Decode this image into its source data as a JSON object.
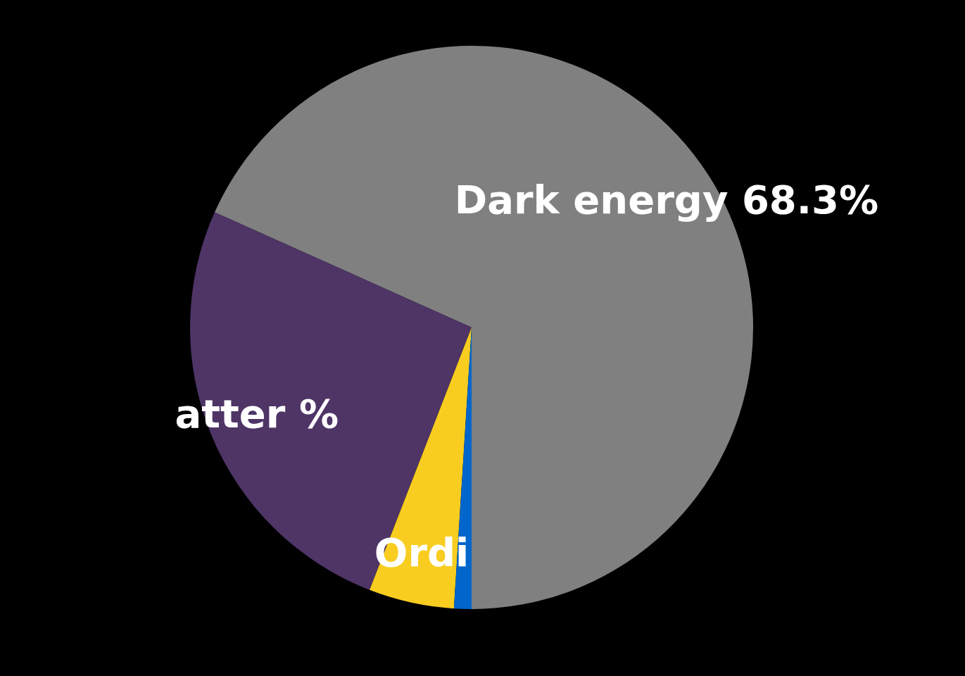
{
  "chart_data": {
    "type": "pie",
    "categories": [
      "Dark energy 68.3%",
      "atter %",
      "Ordi",
      null
    ],
    "values": [
      68.3,
      25.8,
      4.9,
      1.0
    ],
    "colors": [
      "#808080",
      "#4e3566",
      "#f8cd20",
      "#0066cc"
    ]
  }
}
